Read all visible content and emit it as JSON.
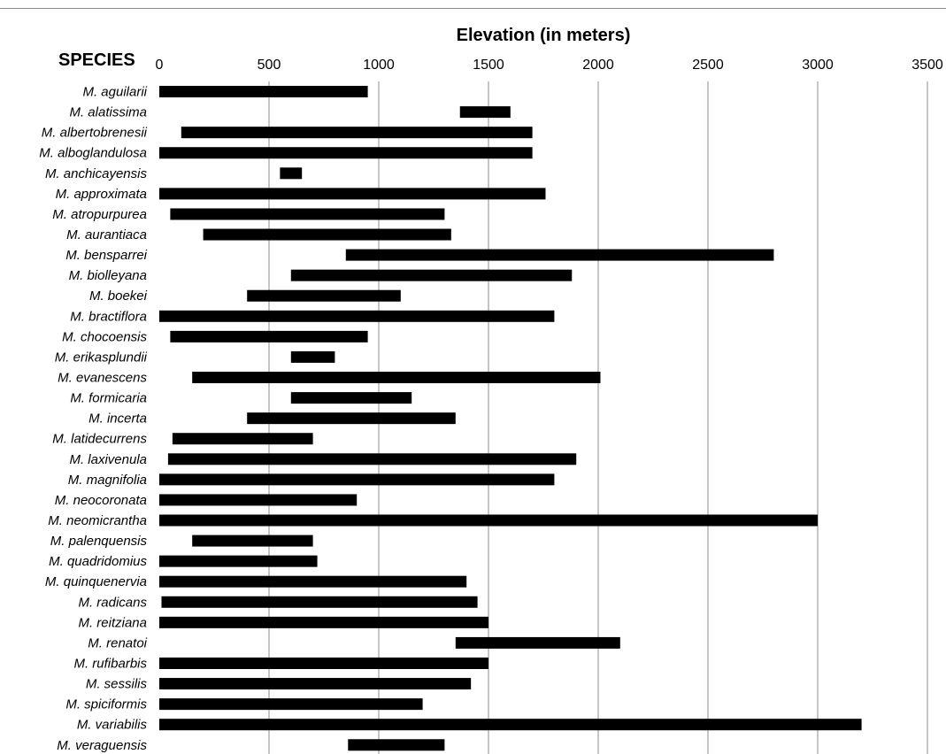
{
  "chart_data": {
    "type": "bar",
    "orientation": "horizontal-range",
    "title": "Elevation (in meters)",
    "ylabel": "SPECIES",
    "xlim": [
      0,
      3500
    ],
    "xticks": [
      "0",
      "500",
      "1000",
      "1500",
      "2000",
      "2500",
      "3000",
      "3500"
    ],
    "grid": true,
    "bar_color": "#000000",
    "categories": [
      "M. aguilarii",
      "M. alatissima",
      "M. albertobrenesii",
      "M. alboglandulosa",
      "M. anchicayensis",
      "M. approximata",
      "M. atropurpurea",
      "M. aurantiaca",
      "M. bensparrei",
      "M. biolleyana",
      "M. boekei",
      "M. bractiflora",
      "M. chocoensis",
      "M. erikasplundii",
      "M. evanescens",
      "M. formicaria",
      "M. incerta",
      "M. latidecurrens",
      "M. laxivenula",
      "M. magnifolia",
      "M. neocoronata",
      "M. neomicrantha",
      "M. palenquensis",
      "M. quadridomius",
      "M. quinquenervia",
      "M. radicans",
      "M. reitziana",
      "M. renatoi",
      "M. rufibarbis",
      "M. sessilis",
      "M. spiciformis",
      "M. variabilis",
      "M. veraguensis"
    ],
    "ranges": [
      [
        0,
        950
      ],
      [
        1370,
        1600
      ],
      [
        100,
        1700
      ],
      [
        0,
        1700
      ],
      [
        550,
        650
      ],
      [
        0,
        1760
      ],
      [
        50,
        1300
      ],
      [
        200,
        1330
      ],
      [
        850,
        2800
      ],
      [
        600,
        1880
      ],
      [
        400,
        1100
      ],
      [
        0,
        1800
      ],
      [
        50,
        950
      ],
      [
        600,
        800
      ],
      [
        150,
        2010
      ],
      [
        600,
        1150
      ],
      [
        400,
        1350
      ],
      [
        60,
        700
      ],
      [
        40,
        1900
      ],
      [
        0,
        1800
      ],
      [
        0,
        900
      ],
      [
        0,
        3000
      ],
      [
        150,
        700
      ],
      [
        0,
        720
      ],
      [
        0,
        1400
      ],
      [
        10,
        1450
      ],
      [
        0,
        1500
      ],
      [
        1350,
        2100
      ],
      [
        0,
        1500
      ],
      [
        0,
        1420
      ],
      [
        0,
        1200
      ],
      [
        0,
        3200
      ],
      [
        860,
        1300
      ]
    ]
  }
}
